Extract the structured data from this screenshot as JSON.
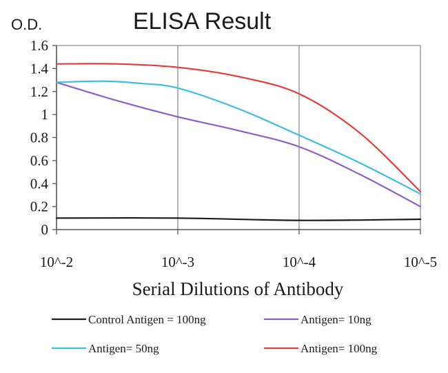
{
  "chart_data": {
    "type": "line",
    "title": "ELISA Result",
    "ylabel": "O.D.",
    "xlabel": "Serial Dilutions of Antibody",
    "categories": [
      "10^-2",
      "10^-3",
      "10^-4",
      "10^-5"
    ],
    "x": [
      2,
      3,
      4,
      5
    ],
    "ylim": [
      0,
      1.6
    ],
    "y_ticks": [
      "0",
      "0.2",
      "0.4",
      "0.6",
      "0.8",
      "1",
      "1.2",
      "1.4",
      "1.6"
    ],
    "y_tick_values": [
      0,
      0.2,
      0.4,
      0.6,
      0.8,
      1,
      1.2,
      1.4,
      1.6
    ],
    "grid": "vertical",
    "legend_position": "bottom",
    "series": [
      {
        "name": "Control Antigen = 100ng",
        "color": "#1a1a1a",
        "points": [
          [
            2,
            0.1
          ],
          [
            3,
            0.1
          ],
          [
            4,
            0.08
          ],
          [
            5,
            0.09
          ]
        ]
      },
      {
        "name": "Antigen= 10ng",
        "color": "#8e5cc9",
        "points": [
          [
            2,
            1.28
          ],
          [
            2.5,
            1.12
          ],
          [
            3,
            0.98
          ],
          [
            3.5,
            0.86
          ],
          [
            4,
            0.72
          ],
          [
            4.5,
            0.48
          ],
          [
            5,
            0.2
          ]
        ]
      },
      {
        "name": "Antigen= 50ng",
        "color": "#3bbde8",
        "points": [
          [
            2,
            1.28
          ],
          [
            2.4,
            1.29
          ],
          [
            2.7,
            1.27
          ],
          [
            3,
            1.23
          ],
          [
            3.5,
            1.05
          ],
          [
            4,
            0.82
          ],
          [
            4.5,
            0.58
          ],
          [
            5,
            0.31
          ]
        ]
      },
      {
        "name": "Antigen= 100ng",
        "color": "#e63a3a",
        "points": [
          [
            2,
            1.44
          ],
          [
            2.5,
            1.44
          ],
          [
            3,
            1.41
          ],
          [
            3.5,
            1.33
          ],
          [
            4,
            1.18
          ],
          [
            4.5,
            0.84
          ],
          [
            5,
            0.33
          ]
        ]
      }
    ]
  }
}
